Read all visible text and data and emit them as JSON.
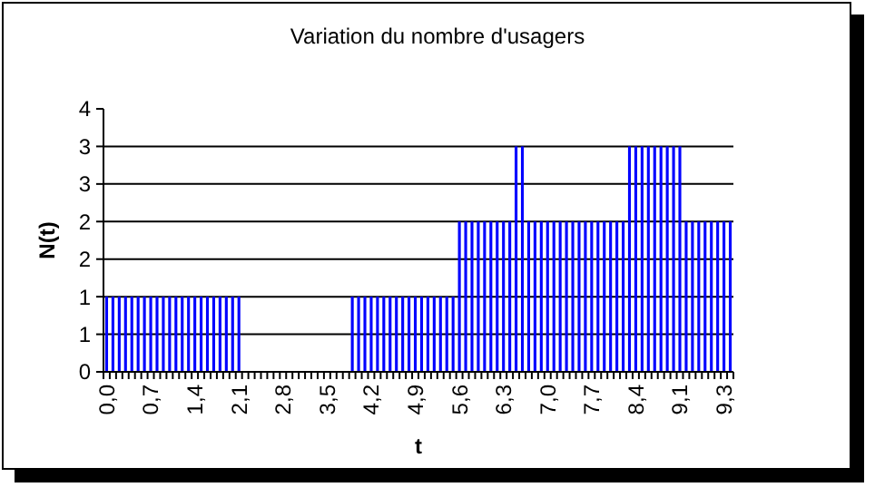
{
  "chart_data": {
    "type": "bar",
    "title": "Variation du nombre d'usagers",
    "xlabel": "t",
    "ylabel": "N(t)",
    "categories": [
      "0,0",
      null,
      null,
      null,
      null,
      null,
      null,
      "0,7",
      null,
      null,
      null,
      null,
      null,
      null,
      "1,4",
      null,
      null,
      null,
      null,
      null,
      null,
      "2,1",
      null,
      null,
      null,
      null,
      null,
      null,
      "2,8",
      null,
      null,
      null,
      null,
      null,
      null,
      "3,5",
      null,
      null,
      null,
      null,
      null,
      null,
      "4,2",
      null,
      null,
      null,
      null,
      null,
      null,
      "4,9",
      null,
      null,
      null,
      null,
      null,
      null,
      "5,6",
      null,
      null,
      null,
      null,
      null,
      null,
      "6,3",
      null,
      null,
      null,
      null,
      null,
      null,
      "7,0",
      null,
      null,
      null,
      null,
      null,
      null,
      "7,7",
      null,
      null,
      null,
      null,
      null,
      null,
      "8,4",
      null,
      null,
      null,
      null,
      null,
      null,
      "9,1",
      null,
      null,
      null,
      null,
      null,
      null,
      "9,3",
      null
    ],
    "values": [
      1,
      1,
      1,
      1,
      1,
      1,
      1,
      1,
      1,
      1,
      1,
      1,
      1,
      1,
      1,
      1,
      1,
      1,
      1,
      1,
      1,
      1,
      0,
      0,
      0,
      0,
      0,
      0,
      0,
      0,
      0,
      0,
      0,
      0,
      0,
      0,
      0,
      0,
      0,
      1,
      1,
      1,
      1,
      1,
      1,
      1,
      1,
      1,
      1,
      1,
      1,
      1,
      1,
      1,
      1,
      1,
      2,
      2,
      2,
      2,
      2,
      2,
      2,
      2,
      2,
      3,
      3,
      2,
      2,
      2,
      2,
      2,
      2,
      2,
      2,
      2,
      2,
      2,
      2,
      2,
      2,
      2,
      2,
      3,
      3,
      3,
      3,
      3,
      3,
      3,
      3,
      3,
      2,
      2,
      2,
      2,
      2,
      2,
      2,
      2
    ],
    "color": "#0000ff",
    "ylim": [
      0,
      3.5
    ],
    "yticks": [
      0,
      {
        "value": 0.5,
        "label": "1"
      },
      1,
      {
        "value": 1.5,
        "label": "2"
      },
      2,
      {
        "value": 2.5,
        "label": "3"
      },
      3,
      {
        "value": 3.5,
        "label": "4"
      }
    ],
    "grid": "y"
  }
}
